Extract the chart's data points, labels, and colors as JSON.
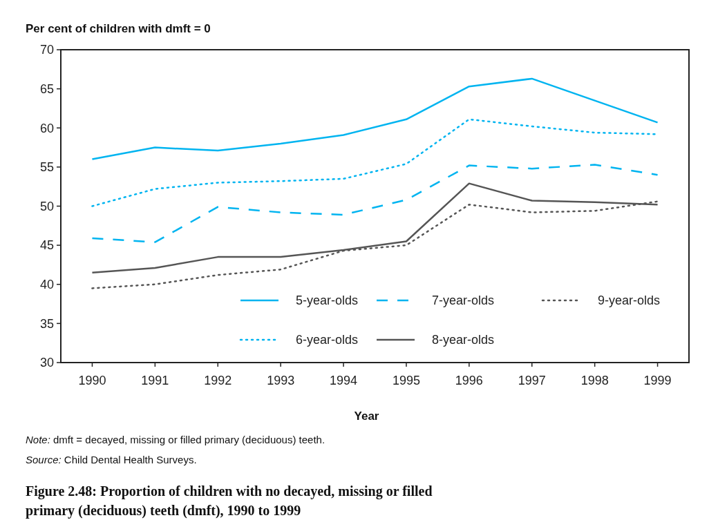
{
  "chart_data": {
    "type": "line",
    "title": "Figure 2.48: Proportion of children with no decayed, missing or filled primary (deciduous) teeth (dmft), 1990 to 1999",
    "ylabel": "Per cent of children with dmft = 0",
    "xlabel": "Year",
    "annotations": [
      "Note: dmft = decayed, missing or filled primary (deciduous) teeth.",
      "Source: Child Dental Health Surveys."
    ],
    "categories": [
      "1990",
      "1991",
      "1992",
      "1993",
      "1994",
      "1995",
      "1996",
      "1997",
      "1998",
      "1999"
    ],
    "ylim": [
      30,
      70
    ],
    "yticks": [
      30,
      35,
      40,
      45,
      50,
      55,
      60,
      65,
      70
    ],
    "legend": "bottom right",
    "grid": false,
    "series": [
      {
        "name": "5-year-olds",
        "color": "#00b4f0",
        "line_style": "solid",
        "values": [
          56.0,
          57.5,
          57.1,
          58.0,
          59.1,
          61.1,
          65.3,
          66.3,
          63.5,
          60.7
        ]
      },
      {
        "name": "6-year-olds",
        "color": "#00b4f0",
        "line_style": "dotted",
        "values": [
          50.0,
          52.2,
          53.0,
          53.2,
          53.5,
          55.4,
          61.1,
          60.2,
          59.4,
          59.2
        ]
      },
      {
        "name": "7-year-olds",
        "color": "#00b4f0",
        "line_style": "dashed",
        "values": [
          45.9,
          45.4,
          49.9,
          49.2,
          48.9,
          50.8,
          55.2,
          54.8,
          55.3,
          54.0
        ]
      },
      {
        "name": "8-year-olds",
        "color": "#555555",
        "line_style": "solid",
        "values": [
          41.5,
          42.1,
          43.5,
          43.5,
          44.4,
          45.5,
          52.9,
          50.7,
          50.5,
          50.2
        ]
      },
      {
        "name": "9-year-olds",
        "color": "#555555",
        "line_style": "dotted",
        "values": [
          39.5,
          40.0,
          41.2,
          41.9,
          44.3,
          45.0,
          50.2,
          49.2,
          49.4,
          50.6
        ]
      }
    ]
  }
}
